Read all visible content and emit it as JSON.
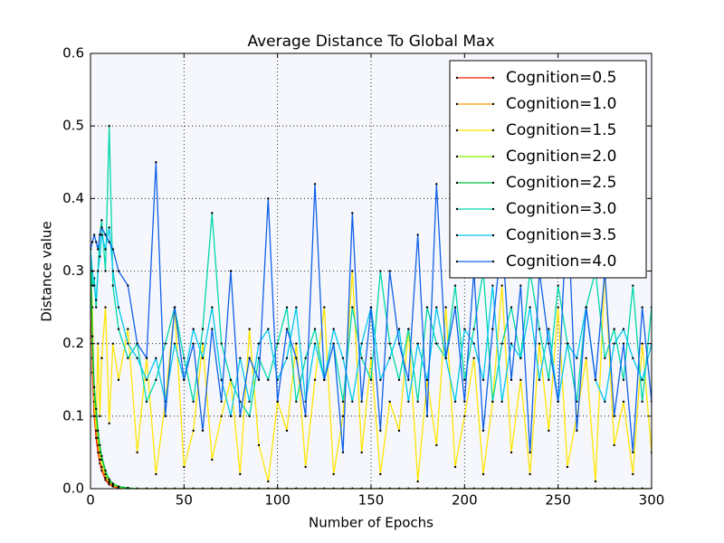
{
  "chart_data": {
    "type": "line",
    "title": "Average Distance To Global Max",
    "x_label": "Number of Epochs",
    "y_label": "Distance value",
    "x": [
      0,
      1,
      2,
      3,
      4,
      5,
      6,
      8,
      10,
      12,
      15,
      20,
      25,
      30,
      35,
      40,
      45,
      50,
      55,
      60,
      65,
      70,
      75,
      80,
      85,
      90,
      95,
      100,
      105,
      110,
      115,
      120,
      125,
      130,
      135,
      140,
      145,
      150,
      155,
      160,
      165,
      170,
      175,
      180,
      185,
      190,
      195,
      200,
      205,
      210,
      215,
      220,
      225,
      230,
      235,
      240,
      245,
      250,
      255,
      260,
      265,
      270,
      275,
      280,
      285,
      290,
      295,
      300
    ],
    "series": [
      {
        "name": "Cognition=0.5",
        "color": "#ff1a00",
        "values": [
          0.3,
          0.16,
          0.1,
          0.07,
          0.05,
          0.035,
          0.025,
          0.012,
          0.006,
          0.003,
          0.001,
          0,
          0,
          0,
          0,
          0,
          0,
          0,
          0,
          0,
          0,
          0,
          0,
          0,
          0,
          0,
          0,
          0,
          0,
          0,
          0,
          0,
          0,
          0,
          0,
          0,
          0,
          0,
          0,
          0,
          0,
          0,
          0,
          0,
          0,
          0,
          0,
          0,
          0,
          0,
          0,
          0,
          0,
          0,
          0,
          0,
          0,
          0,
          0,
          0,
          0,
          0,
          0,
          0,
          0,
          0,
          0,
          0
        ]
      },
      {
        "name": "Cognition=1.0",
        "color": "#ff9900",
        "values": [
          0.3,
          0.18,
          0.12,
          0.09,
          0.06,
          0.04,
          0.03,
          0.015,
          0.008,
          0.004,
          0.002,
          0,
          0,
          0,
          0,
          0,
          0,
          0,
          0,
          0,
          0,
          0,
          0,
          0,
          0,
          0,
          0,
          0,
          0,
          0,
          0,
          0,
          0,
          0,
          0,
          0,
          0,
          0,
          0,
          0,
          0,
          0,
          0,
          0,
          0,
          0,
          0,
          0,
          0,
          0,
          0,
          0,
          0,
          0,
          0,
          0,
          0,
          0,
          0,
          0,
          0,
          0,
          0,
          0,
          0,
          0,
          0,
          0
        ]
      },
      {
        "name": "Cognition=1.5",
        "color": "#ffe600",
        "values": [
          0.3,
          0.25,
          0.12,
          0.08,
          0.2,
          0.1,
          0.18,
          0.25,
          0.09,
          0.2,
          0.15,
          0.22,
          0.05,
          0.18,
          0.02,
          0.12,
          0.25,
          0.03,
          0.08,
          0.2,
          0.04,
          0.1,
          0.15,
          0.02,
          0.22,
          0.06,
          0.01,
          0.12,
          0.08,
          0.2,
          0.03,
          0.15,
          0.25,
          0.02,
          0.1,
          0.3,
          0.05,
          0.18,
          0.02,
          0.12,
          0.08,
          0.22,
          0.01,
          0.15,
          0.06,
          0.25,
          0.03,
          0.1,
          0.18,
          0.02,
          0.12,
          0.28,
          0.05,
          0.15,
          0.02,
          0.2,
          0.08,
          0.25,
          0.03,
          0.1,
          0.18,
          0.01,
          0.3,
          0.06,
          0.12,
          0.02,
          0.2,
          0.05
        ]
      },
      {
        "name": "Cognition=2.0",
        "color": "#88ee00",
        "values": [
          0.33,
          0.2,
          0.13,
          0.1,
          0.07,
          0.05,
          0.04,
          0.02,
          0.01,
          0.006,
          0.002,
          0.001,
          0,
          0,
          0,
          0,
          0,
          0,
          0,
          0,
          0,
          0,
          0,
          0,
          0,
          0,
          0,
          0,
          0,
          0,
          0,
          0,
          0,
          0,
          0,
          0,
          0,
          0,
          0,
          0,
          0,
          0,
          0,
          0,
          0,
          0,
          0,
          0,
          0,
          0,
          0,
          0,
          0,
          0,
          0,
          0,
          0,
          0,
          0,
          0,
          0,
          0,
          0,
          0,
          0,
          0,
          0,
          0
        ]
      },
      {
        "name": "Cognition=2.5",
        "color": "#00c040",
        "values": [
          0.32,
          0.21,
          0.14,
          0.11,
          0.08,
          0.06,
          0.045,
          0.025,
          0.013,
          0.007,
          0.003,
          0.001,
          0,
          0,
          0,
          0,
          0,
          0,
          0,
          0,
          0,
          0,
          0,
          0,
          0,
          0,
          0,
          0,
          0,
          0,
          0,
          0,
          0,
          0,
          0,
          0,
          0,
          0,
          0,
          0,
          0,
          0,
          0,
          0,
          0,
          0,
          0,
          0,
          0,
          0,
          0,
          0,
          0,
          0,
          0,
          0,
          0,
          0,
          0,
          0,
          0,
          0,
          0,
          0,
          0,
          0,
          0,
          0
        ]
      },
      {
        "name": "Cognition=3.0",
        "color": "#00d8a8",
        "values": [
          0.33,
          0.28,
          0.29,
          0.25,
          0.3,
          0.35,
          0.37,
          0.3,
          0.5,
          0.28,
          0.22,
          0.18,
          0.2,
          0.12,
          0.15,
          0.2,
          0.25,
          0.18,
          0.12,
          0.22,
          0.38,
          0.2,
          0.15,
          0.12,
          0.1,
          0.18,
          0.15,
          0.2,
          0.25,
          0.12,
          0.18,
          0.22,
          0.15,
          0.2,
          0.12,
          0.25,
          0.18,
          0.15,
          0.3,
          0.2,
          0.15,
          0.22,
          0.12,
          0.25,
          0.2,
          0.18,
          0.28,
          0.15,
          0.22,
          0.3,
          0.12,
          0.2,
          0.25,
          0.18,
          0.3,
          0.22,
          0.15,
          0.28,
          0.2,
          0.12,
          0.25,
          0.3,
          0.18,
          0.22,
          0.15,
          0.28,
          0.12,
          0.25
        ]
      },
      {
        "name": "Cognition=3.5",
        "color": "#00c8f0",
        "values": [
          0.33,
          0.3,
          0.28,
          0.26,
          0.3,
          0.32,
          0.35,
          0.33,
          0.36,
          0.3,
          0.25,
          0.2,
          0.18,
          0.15,
          0.18,
          0.12,
          0.2,
          0.15,
          0.22,
          0.18,
          0.25,
          0.15,
          0.1,
          0.18,
          0.12,
          0.2,
          0.22,
          0.15,
          0.18,
          0.25,
          0.12,
          0.2,
          0.15,
          0.22,
          0.18,
          0.12,
          0.2,
          0.25,
          0.15,
          0.18,
          0.22,
          0.12,
          0.2,
          0.15,
          0.25,
          0.18,
          0.12,
          0.22,
          0.2,
          0.15,
          0.28,
          0.12,
          0.2,
          0.18,
          0.25,
          0.15,
          0.22,
          0.12,
          0.2,
          0.18,
          0.25,
          0.15,
          0.12,
          0.2,
          0.22,
          0.18,
          0.15,
          0.2
        ]
      },
      {
        "name": "Cognition=4.0",
        "color": "#1060e8",
        "values": [
          0.33,
          0.34,
          0.35,
          0.34,
          0.33,
          0.35,
          0.36,
          0.35,
          0.34,
          0.33,
          0.3,
          0.28,
          0.2,
          0.18,
          0.45,
          0.1,
          0.25,
          0.15,
          0.2,
          0.08,
          0.22,
          0.12,
          0.3,
          0.1,
          0.18,
          0.15,
          0.4,
          0.12,
          0.22,
          0.18,
          0.1,
          0.42,
          0.15,
          0.2,
          0.05,
          0.38,
          0.12,
          0.25,
          0.08,
          0.3,
          0.2,
          0.15,
          0.35,
          0.1,
          0.42,
          0.18,
          0.25,
          0.12,
          0.3,
          0.08,
          0.22,
          0.35,
          0.15,
          0.28,
          0.05,
          0.3,
          0.2,
          0.12,
          0.4,
          0.08,
          0.25,
          0.15,
          0.3,
          0.1,
          0.2,
          0.05,
          0.25,
          0.12
        ]
      }
    ],
    "xlim": [
      0,
      300
    ],
    "xticks": [
      0,
      50,
      100,
      150,
      200,
      250,
      300
    ],
    "ylim": [
      0,
      0.6
    ],
    "yticks": [
      {
        "value": 0,
        "label": "0.0"
      },
      0.1,
      0.2,
      0.3,
      0.4,
      0.5,
      0.6
    ],
    "grid": true,
    "legend": "upper right",
    "marker_color": "#000000",
    "background": "#f5f7fc"
  }
}
